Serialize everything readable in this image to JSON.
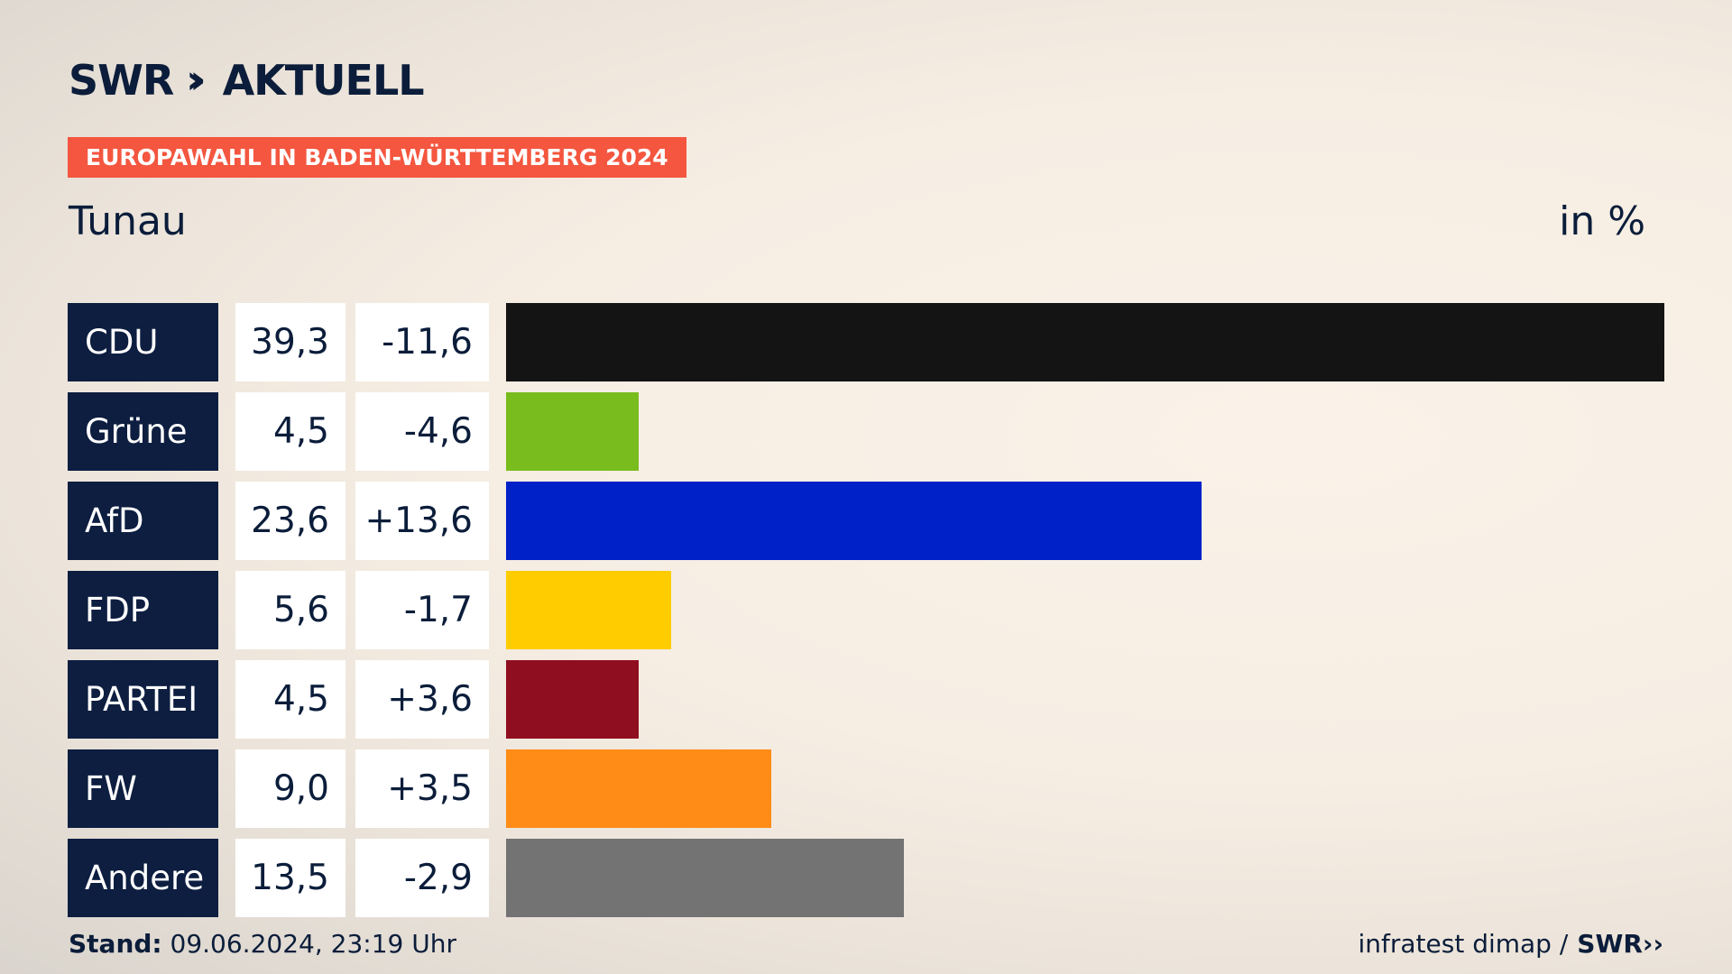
{
  "header": {
    "logo_swr": "SWR",
    "logo_chevrons": "››",
    "logo_aktuell": "AKTUELL",
    "tag": "EUROPAWAHL IN BADEN-WÜRTTEMBERG 2024",
    "region": "Tunau",
    "unit": "in %"
  },
  "chart_data": {
    "type": "bar",
    "title": "EUROPAWAHL IN BADEN-WÜRTTEMBERG 2024",
    "subtitle": "Tunau",
    "unit": "in %",
    "categories": [
      "CDU",
      "Grüne",
      "AfD",
      "FDP",
      "PARTEI",
      "FW",
      "Andere"
    ],
    "values": [
      39.3,
      4.5,
      23.6,
      5.6,
      4.5,
      9.0,
      13.5
    ],
    "value_labels": [
      "39,3",
      "4,5",
      "23,6",
      "5,6",
      "4,5",
      "9,0",
      "13,5"
    ],
    "diff_labels": [
      "-11,6",
      "-4,6",
      "+13,6",
      "-1,7",
      "+3,6",
      "+3,5",
      "-2,9"
    ],
    "colors": [
      "#141414",
      "#78bc1e",
      "#0021c8",
      "#ffcc00",
      "#8f0e1f",
      "#ff8c17",
      "#737374"
    ],
    "xlim": [
      0,
      39.3
    ]
  },
  "footer": {
    "stand_label": "Stand:",
    "stand_value": " 09.06.2024, 23:19 Uhr",
    "source": "infratest dimap /",
    "source_logo": "SWR››"
  }
}
